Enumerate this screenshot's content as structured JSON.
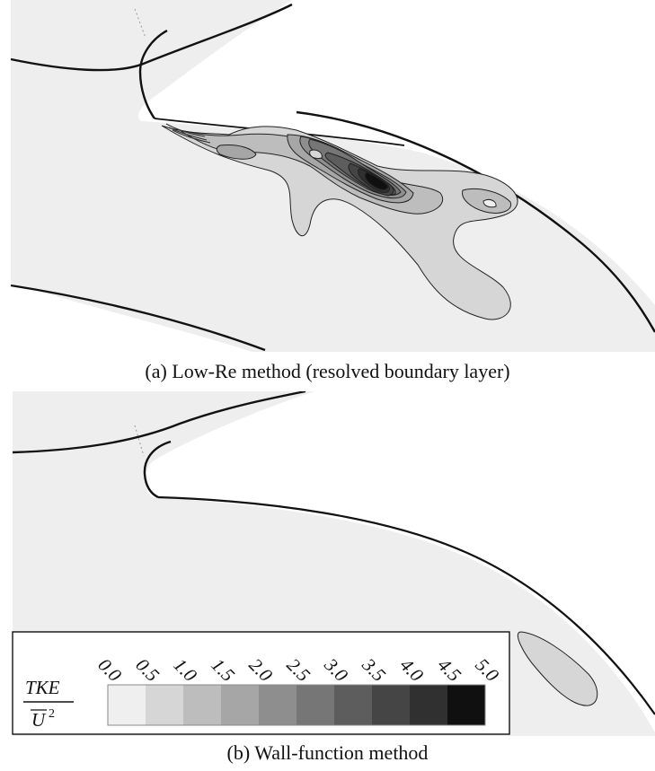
{
  "figure": {
    "panel_a": {
      "caption": "(a) Low-Re method (resolved boundary layer)"
    },
    "panel_b": {
      "caption": "(b) Wall-function method"
    }
  },
  "colorbar": {
    "label_numerator": "TKE",
    "label_denominator": "U",
    "label_exponent": "2",
    "ticks": [
      "0.0",
      "0.5",
      "1.0",
      "1.5",
      "2.0",
      "2.5",
      "3.0",
      "3.5",
      "4.0",
      "4.5",
      "5.0"
    ],
    "levels": [
      {
        "value": 0.0,
        "color": "#efefef"
      },
      {
        "value": 0.5,
        "color": "#d6d6d6"
      },
      {
        "value": 1.0,
        "color": "#bdbdbd"
      },
      {
        "value": 1.5,
        "color": "#a6a6a6"
      },
      {
        "value": 2.0,
        "color": "#8e8e8e"
      },
      {
        "value": 2.5,
        "color": "#767676"
      },
      {
        "value": 3.0,
        "color": "#5d5d5d"
      },
      {
        "value": 3.5,
        "color": "#454545"
      },
      {
        "value": 4.0,
        "color": "#303030"
      },
      {
        "value": 4.5,
        "color": "#101010"
      }
    ]
  },
  "colors": {
    "flow_background": "#eeeeee",
    "wall_line": "#111111"
  }
}
